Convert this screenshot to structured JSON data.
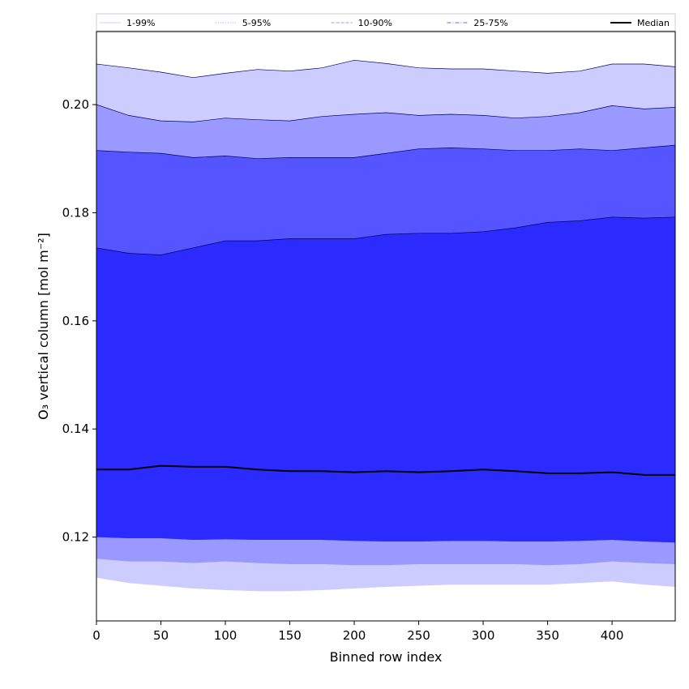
{
  "chart_data": {
    "type": "area",
    "title": "",
    "xlabel": "Binned row index",
    "ylabel": "O₃ vertical column [mol m⁻²]",
    "xlim": [
      0,
      449
    ],
    "ylim": [
      0.1045,
      0.2135
    ],
    "xticks": [
      0,
      50,
      100,
      150,
      200,
      250,
      300,
      350,
      400
    ],
    "yticks": [
      0.12,
      0.14,
      0.16,
      0.18,
      0.2
    ],
    "ytick_labels": [
      "0.12",
      "0.14",
      "0.16",
      "0.18",
      "0.20"
    ],
    "legend_placement": "top",
    "legend": [
      {
        "label": "1-99%",
        "style": "solid",
        "color": "#ccccff"
      },
      {
        "label": "5-95%",
        "style": "dotted",
        "color": "#9999ff"
      },
      {
        "label": "10-90%",
        "style": "dashed",
        "color": "#9999ff"
      },
      {
        "label": "25-75%",
        "style": "dashdot",
        "color": "#6666ff"
      },
      {
        "label": "Median",
        "style": "solid",
        "color": "#000000"
      }
    ],
    "x": [
      0,
      25,
      50,
      75,
      100,
      125,
      150,
      175,
      200,
      225,
      250,
      275,
      300,
      325,
      350,
      375,
      400,
      425,
      449
    ],
    "bands": [
      {
        "name": "1-99%",
        "color": "#ccccff",
        "upper": [
          0.2075,
          0.2068,
          0.206,
          0.205,
          0.2058,
          0.2065,
          0.2062,
          0.2068,
          0.2082,
          0.2076,
          0.2068,
          0.2066,
          0.2066,
          0.2062,
          0.2058,
          0.2062,
          0.2075,
          0.2075,
          0.207
        ],
        "lower": [
          0.1125,
          0.1115,
          0.111,
          0.1105,
          0.1102,
          0.11,
          0.11,
          0.1102,
          0.1105,
          0.1108,
          0.111,
          0.1112,
          0.1112,
          0.1112,
          0.1112,
          0.1115,
          0.1118,
          0.1112,
          0.1108
        ]
      },
      {
        "name": "5-95%",
        "color": "#9999ff",
        "upper": [
          0.2,
          0.198,
          0.197,
          0.1968,
          0.1975,
          0.1972,
          0.197,
          0.1978,
          0.1982,
          0.1985,
          0.198,
          0.1982,
          0.198,
          0.1975,
          0.1978,
          0.1985,
          0.1998,
          0.1992,
          0.1995
        ],
        "lower": [
          0.116,
          0.1155,
          0.1155,
          0.1152,
          0.1155,
          0.1152,
          0.115,
          0.115,
          0.1148,
          0.1148,
          0.115,
          0.115,
          0.115,
          0.115,
          0.1148,
          0.115,
          0.1155,
          0.1152,
          0.115
        ]
      },
      {
        "name": "10-90%",
        "color": "#5555ff",
        "upper": [
          0.1915,
          0.1912,
          0.191,
          0.1902,
          0.1905,
          0.19,
          0.1902,
          0.1902,
          0.1902,
          0.191,
          0.1918,
          0.192,
          0.1918,
          0.1915,
          0.1915,
          0.1918,
          0.1915,
          0.192,
          0.1925
        ],
        "lower": [
          0.12,
          0.1198,
          0.1198,
          0.1195,
          0.1196,
          0.1195,
          0.1195,
          0.1195,
          0.1193,
          0.1192,
          0.1192,
          0.1193,
          0.1193,
          0.1192,
          0.1192,
          0.1193,
          0.1195,
          0.1192,
          0.119
        ]
      },
      {
        "name": "25-75%",
        "color": "#2b2bff",
        "upper": [
          0.1735,
          0.1725,
          0.1722,
          0.1735,
          0.1748,
          0.1748,
          0.1752,
          0.1752,
          0.1752,
          0.176,
          0.1762,
          0.1762,
          0.1765,
          0.1772,
          0.1782,
          0.1785,
          0.1792,
          0.179,
          0.1792
        ],
        "lower": [
          0.12,
          0.1198,
          0.1198,
          0.1195,
          0.1196,
          0.1195,
          0.1195,
          0.1195,
          0.1193,
          0.1192,
          0.1192,
          0.1193,
          0.1193,
          0.1192,
          0.1192,
          0.1193,
          0.1195,
          0.1192,
          0.119
        ]
      }
    ],
    "median": {
      "name": "Median",
      "color": "#000000",
      "values": [
        0.1325,
        0.1325,
        0.1332,
        0.133,
        0.133,
        0.1325,
        0.1322,
        0.1322,
        0.132,
        0.1322,
        0.132,
        0.1322,
        0.1325,
        0.1322,
        0.1318,
        0.1318,
        0.132,
        0.1315,
        0.1315
      ]
    },
    "grid": false
  }
}
